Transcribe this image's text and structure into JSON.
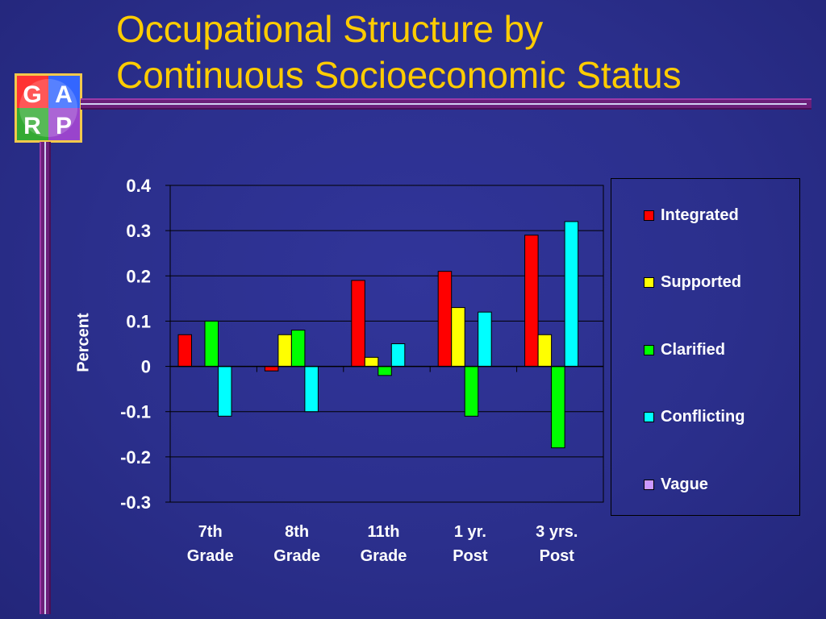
{
  "slide": {
    "title_line1": "Occupational Structure by",
    "title_line2": "Continuous Socioeconomic Status",
    "logo_letters": [
      "G",
      "A",
      "R",
      "P"
    ],
    "colors": {
      "background": "#2b2f8c",
      "title": "#ffcc00",
      "rule": "#6b1f7a"
    }
  },
  "chart_data": {
    "type": "bar",
    "ylabel": "Percent",
    "ylim": [
      -0.3,
      0.4
    ],
    "yticks": [
      0.4,
      0.3,
      0.2,
      0.1,
      0,
      -0.1,
      -0.2,
      -0.3
    ],
    "ytick_labels": [
      "0.4",
      "0.3",
      "0.2",
      "0.1",
      "0",
      "-0.1",
      "-0.2",
      "-0.3"
    ],
    "grid": true,
    "legend_position": "right",
    "categories": [
      [
        "7th",
        "Grade"
      ],
      [
        "8th",
        "Grade"
      ],
      [
        "11th",
        "Grade"
      ],
      [
        "1 yr.",
        "Post"
      ],
      [
        "3 yrs.",
        "Post"
      ]
    ],
    "series": [
      {
        "name": "Integrated",
        "color": "#ff0000",
        "values": [
          0.07,
          -0.01,
          0.19,
          0.21,
          0.29
        ]
      },
      {
        "name": "Supported",
        "color": "#ffff00",
        "values": [
          0,
          0.07,
          0.02,
          0.13,
          0.07
        ]
      },
      {
        "name": "Clarified",
        "color": "#00ff00",
        "values": [
          0.1,
          0.08,
          -0.02,
          -0.11,
          -0.18
        ]
      },
      {
        "name": "Conflicting",
        "color": "#00ffff",
        "values": [
          -0.11,
          -0.1,
          0.05,
          0.12,
          0.32
        ]
      },
      {
        "name": "Vague",
        "color": "#cc99ff",
        "values": [
          null,
          null,
          null,
          null,
          null
        ]
      }
    ]
  }
}
